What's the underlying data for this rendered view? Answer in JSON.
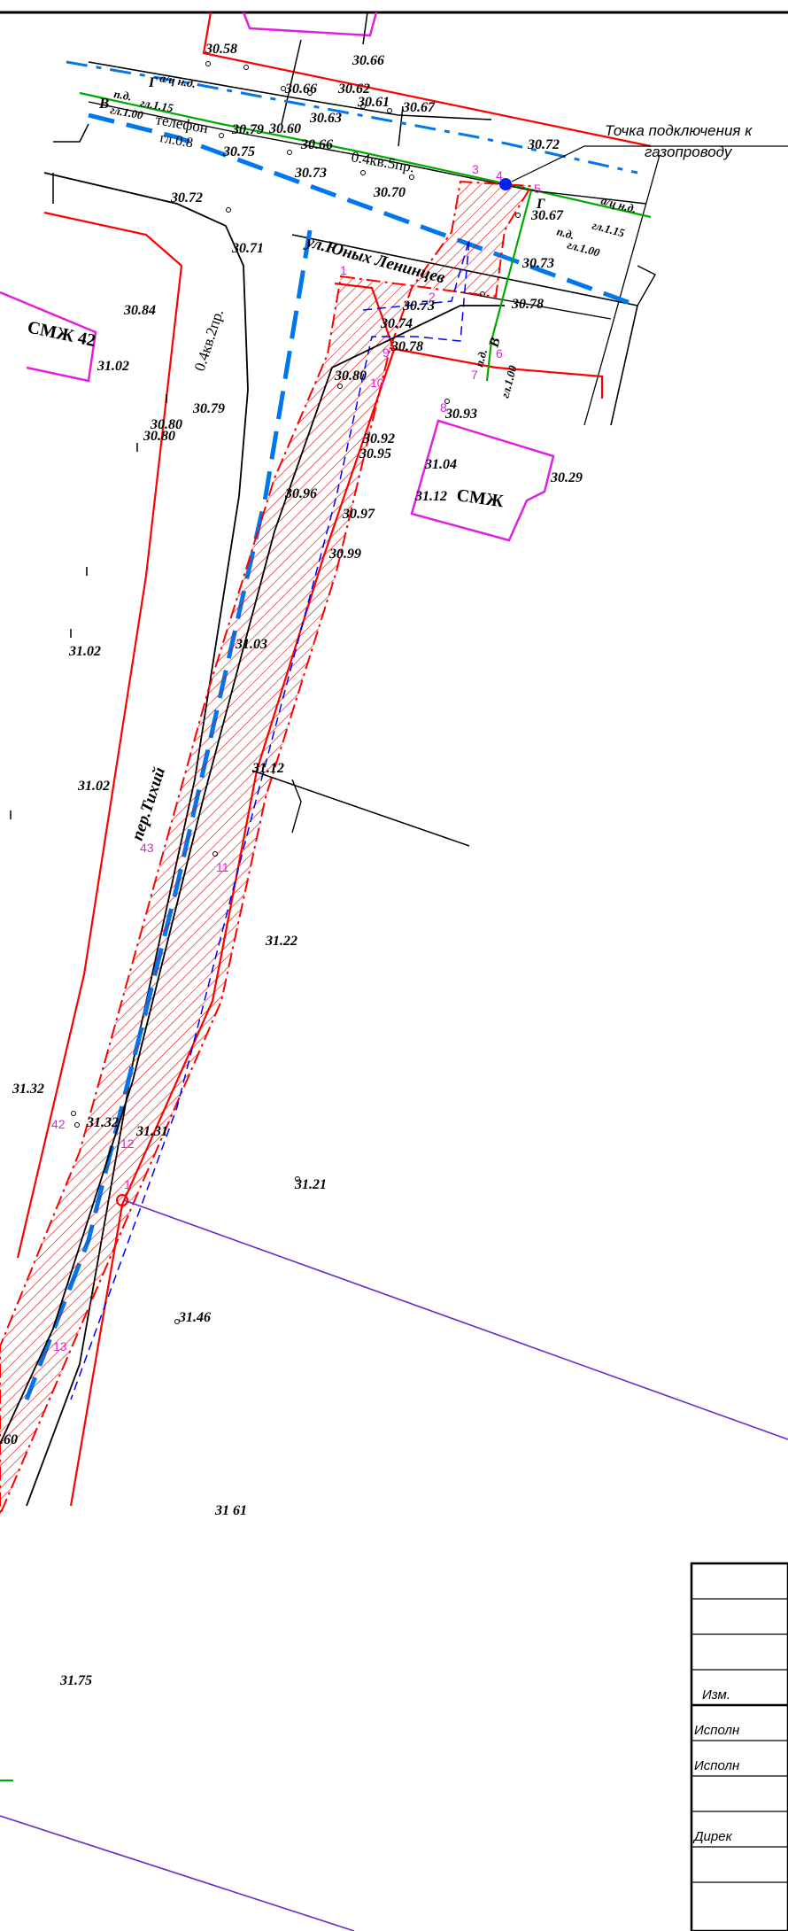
{
  "elevations": {
    "e1": "30.58",
    "e2": "30.66",
    "e3": "30.66",
    "e4": "30.62",
    "e5": "30.61",
    "e6": "30.67",
    "e7": "30.79",
    "e8": "30.60",
    "e9": "30.63",
    "e10": "30.66",
    "e11": "30.75",
    "e12": "30.73",
    "e13": "30.70",
    "e14": "30.72",
    "e15": "30.67",
    "e16": "30.73",
    "e17": "30.72",
    "e18": "30.71",
    "e19": "30.84",
    "e20": "31.02",
    "e21": "30.73",
    "e22": "30.74",
    "e23": "30.78",
    "e24": "30.78",
    "e25": "30.80",
    "e26": "30.79",
    "e27": "30.80",
    "e28": "30.80",
    "e29": "30.93",
    "e30": "30.92",
    "e31": "30.95",
    "e32": "31.04",
    "e33": "31.12",
    "e34": "30.29",
    "e35": "30.96",
    "e36": "30.97",
    "e37": "30.99",
    "e38": "31.03",
    "e39": "31.02",
    "e40": "31.12",
    "e41": "31.02",
    "e42": "31.22",
    "e43": "31.32",
    "e44": "31.32",
    "e45": "31.31",
    "e46": "31.21",
    "e47": "31.46",
    "e48": ".60",
    "e49": "31 61",
    "e50": "31.75"
  },
  "labels": {
    "street1": "ул.Юных Ленинцев",
    "street2": "пер.Тихий",
    "building1": "СМЖ 42",
    "building2": "СМЖ",
    "phone": "телефон",
    "depth1": "гл.0.8",
    "cable1": "0.4кв.5пр.",
    "cable2": "0.4кв.2пр.",
    "gas_g": "Г",
    "gas_g2": "Г",
    "ad_nd": "а/ц н.д.",
    "ad_nd2": "а/ц н.д.",
    "pd_left": "п.д.",
    "gl115": "гл.1.15",
    "gl100": "гл.1.00",
    "gl115b": "гл.1.15",
    "pd_right": "п.д.",
    "gl100b": "гл.1.00",
    "b_left": "В",
    "b_vert": "В",
    "gl100v": "гл.1.00",
    "pd_vert": "п.д."
  },
  "points": {
    "p1": "1",
    "p2": "2",
    "p3": "3",
    "p4": "4",
    "p5": "5",
    "p6": "6",
    "p7": "7",
    "p8": "8",
    "p9": "9",
    "p10": "10",
    "p11": "11",
    "p12": "12",
    "p13": "13",
    "p42": "42",
    "p43": "43",
    "p1b": "1"
  },
  "note": {
    "line1": "Точка подключения к",
    "line2": "газопроводу"
  },
  "title_block": {
    "izm": "Изм.",
    "ispoln1": "Исполн",
    "ispoln2": "Исполн",
    "direkt": "Дирек"
  },
  "colors": {
    "boundary": "#ff0000",
    "hatch": "#e00000",
    "gas_dash": "#0077ee",
    "building": "#e020e0",
    "water": "#00aa00",
    "land_line": "#6a2bc9",
    "pipe_blue": "#0000ff"
  }
}
